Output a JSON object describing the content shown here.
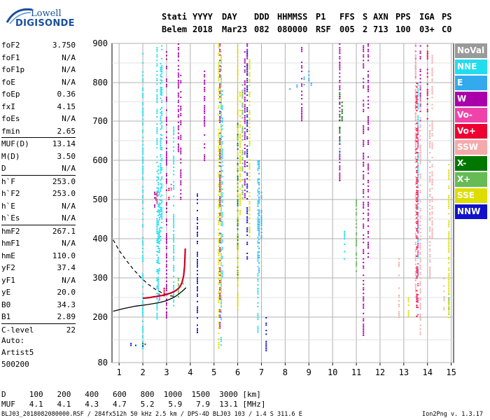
{
  "logo": {
    "brand_top": "Lowell",
    "brand_bottom": "DIGISONDE"
  },
  "header": {
    "row1": [
      "Stati",
      "YYYY",
      "DAY",
      "DDD",
      "HHMMSS",
      "P1",
      "FFS",
      "S",
      "AXN",
      "PPS",
      "IGA",
      "PS"
    ],
    "row2": [
      "Belem",
      "2018",
      "Mar23",
      "082",
      "080000",
      "RSF",
      "005",
      "2",
      "713",
      "100",
      "03+",
      "C0"
    ]
  },
  "parameters": [
    {
      "label": "foF2",
      "value": "3.750"
    },
    {
      "label": "foF1",
      "value": "N/A"
    },
    {
      "label": "foF1p",
      "value": "N/A"
    },
    {
      "label": "foE",
      "value": "N/A"
    },
    {
      "label": "foEp",
      "value": "0.36"
    },
    {
      "label": "fxI",
      "value": "4.15"
    },
    {
      "label": "foEs",
      "value": "N/A"
    },
    {
      "label": "fmin",
      "value": "2.65"
    },
    {
      "label": "MUF(D)",
      "value": "13.14"
    },
    {
      "label": "M(D)",
      "value": "3.50"
    },
    {
      "label": "D",
      "value": "N/A"
    },
    {
      "label": "h`F",
      "value": "253.0"
    },
    {
      "label": "h`F2",
      "value": "253.0"
    },
    {
      "label": "h`E",
      "value": "N/A"
    },
    {
      "label": "h`Es",
      "value": "N/A"
    },
    {
      "label": "hmF2",
      "value": "267.1"
    },
    {
      "label": "hmF1",
      "value": "N/A"
    },
    {
      "label": "hmE",
      "value": "110.0"
    },
    {
      "label": "yF2",
      "value": "37.4"
    },
    {
      "label": "yF1",
      "value": "N/A"
    },
    {
      "label": "yE",
      "value": "20.0"
    },
    {
      "label": "B0",
      "value": "34.3"
    },
    {
      "label": "B1",
      "value": "2.89"
    },
    {
      "label": "C-level",
      "value": "22"
    }
  ],
  "auto": {
    "line1": "Auto:",
    "line2": "Artist5",
    "line3": "500200"
  },
  "dmuf_table": {
    "d_label": "D",
    "d_values": [
      "100",
      "200",
      "400",
      "600",
      "800",
      "1000",
      "1500",
      "3000"
    ],
    "d_unit": "[km]",
    "muf_label": "MUF",
    "muf_values": [
      "4.1",
      "4.1",
      "4.3",
      "4.7",
      "5.2",
      "5.9",
      "7.9",
      "13.1"
    ],
    "muf_unit": "[MHz]"
  },
  "footer": {
    "left": "BLJ03_2018082080000.RSF / 284fx512h 50 kHz 2.5 km / DPS-4D BLJ03 103 / 1.4 S 311.6 E",
    "right": "Ion2Png v. 1.3.17"
  },
  "legend": [
    {
      "label": "NoVal",
      "color": "#9a9a9a"
    },
    {
      "label": "NNE",
      "color": "#22ddee"
    },
    {
      "label": "E",
      "color": "#33aaee"
    },
    {
      "label": "W",
      "color": "#aa00aa"
    },
    {
      "label": "Vo-",
      "color": "#ee44aa"
    },
    {
      "label": "Vo+",
      "color": "#ee0033"
    },
    {
      "label": "SSW",
      "color": "#f4aaaa"
    },
    {
      "label": "X-",
      "color": "#007700"
    },
    {
      "label": "X+",
      "color": "#66bb55"
    },
    {
      "label": "SSE",
      "color": "#dddd00"
    },
    {
      "label": "NNW",
      "color": "#1111cc"
    }
  ],
  "chart_data": {
    "type": "scatter",
    "x_ticks": [
      "1",
      "2",
      "3",
      "4",
      "5",
      "6",
      "7",
      "8",
      "9",
      "10",
      "11",
      "12",
      "13",
      "14",
      "15"
    ],
    "y_ticks": [
      "80",
      "200",
      "300",
      "400",
      "500",
      "600",
      "700",
      "800",
      "900"
    ],
    "xlim": [
      0.7,
      15.1
    ],
    "ylim": [
      80,
      900
    ],
    "y_scale": "nonlinear",
    "grid": true,
    "legend_position": "right",
    "profile_solid": [
      [
        0.75,
        215
      ],
      [
        1.2,
        222
      ],
      [
        1.7,
        228
      ],
      [
        2.2,
        232
      ],
      [
        2.7,
        237
      ],
      [
        3.0,
        242
      ],
      [
        3.3,
        250
      ],
      [
        3.5,
        258
      ],
      [
        3.7,
        268
      ],
      [
        3.82,
        275
      ]
    ],
    "profile_dashed": [
      [
        0.75,
        397
      ],
      [
        1.0,
        370
      ],
      [
        1.3,
        345
      ],
      [
        1.6,
        322
      ],
      [
        1.9,
        302
      ],
      [
        2.2,
        285
      ],
      [
        2.5,
        272
      ],
      [
        2.8,
        262
      ],
      [
        3.1,
        255
      ],
      [
        3.4,
        252
      ]
    ],
    "trace_F2": [
      [
        2.0,
        248
      ],
      [
        2.3,
        250
      ],
      [
        2.6,
        253
      ],
      [
        2.9,
        256
      ],
      [
        3.2,
        262
      ],
      [
        3.4,
        268
      ],
      [
        3.55,
        276
      ],
      [
        3.65,
        288
      ],
      [
        3.72,
        305
      ],
      [
        3.76,
        330
      ],
      [
        3.78,
        360
      ],
      [
        3.79,
        375
      ]
    ],
    "scatter_groups": [
      {
        "cat": "NNE",
        "x": [
          2.0,
          2.6,
          2.65,
          2.7,
          2.75,
          2.8,
          3.3,
          5.3,
          5.35,
          6.85,
          10.5,
          13.6
        ],
        "y_min": [
          110,
          160,
          240,
          320,
          390,
          420,
          230,
          120,
          300,
          150,
          350,
          300
        ],
        "y_max": [
          880,
          900,
          600,
          520,
          850,
          900,
          700,
          880,
          780,
          600,
          420,
          800
        ]
      },
      {
        "cat": "E",
        "x": [
          6.9,
          7.0,
          8.2,
          8.5,
          8.8,
          9.0,
          9.1,
          10.3
        ],
        "y_min": [
          300,
          400,
          785,
          790,
          795,
          800,
          790,
          600
        ],
        "y_max": [
          600,
          520,
          790,
          800,
          815,
          830,
          800,
          650
        ]
      },
      {
        "cat": "W",
        "x": [
          2.5,
          3.0,
          3.5,
          3.6,
          4.6,
          5.25,
          6.3,
          6.4,
          8.7,
          10.3,
          11.3,
          11.5,
          13.7
        ],
        "y_min": [
          480,
          200,
          620,
          500,
          600,
          160,
          500,
          800,
          700,
          550,
          150,
          350,
          700
        ],
        "y_max": [
          520,
          880,
          900,
          820,
          840,
          900,
          880,
          900,
          900,
          900,
          900,
          900,
          900
        ]
      },
      {
        "cat": "Vo-",
        "x": [
          2.6,
          2.7,
          3.2,
          13.5,
          13.6
        ],
        "y_min": [
          480,
          240,
          520,
          600,
          200
        ],
        "y_max": [
          520,
          260,
          540,
          900,
          700
        ]
      },
      {
        "cat": "Vo+",
        "x": [
          2.55,
          2.9,
          3.1,
          13.55,
          14.0
        ],
        "y_min": [
          490,
          250,
          500,
          200,
          700
        ],
        "y_max": [
          515,
          275,
          530,
          800,
          900
        ]
      },
      {
        "cat": "SSW",
        "x": [
          12.8,
          13.5,
          13.7,
          14.1,
          14.2,
          14.7
        ],
        "y_min": [
          200,
          250,
          150,
          300,
          400,
          220
        ],
        "y_max": [
          350,
          900,
          800,
          700,
          880,
          300
        ]
      },
      {
        "cat": "X-",
        "x": [
          2.0,
          2.1,
          6.0,
          10.3,
          10.4
        ],
        "y_min": [
          125,
          125,
          300,
          650,
          700
        ],
        "y_max": [
          132,
          135,
          700,
          780,
          760
        ]
      },
      {
        "cat": "X+",
        "x": [
          3.5,
          3.7,
          6.2,
          11.0,
          14.9
        ],
        "y_min": [
          240,
          270,
          500,
          300,
          200
        ],
        "y_max": [
          300,
          310,
          800,
          500,
          260
        ]
      },
      {
        "cat": "SSE",
        "x": [
          5.2,
          5.3,
          6.0,
          6.1,
          6.5,
          13.2,
          14.9
        ],
        "y_min": [
          120,
          200,
          200,
          450,
          400,
          200,
          200
        ],
        "y_max": [
          900,
          880,
          900,
          800,
          860,
          260,
          600
        ]
      },
      {
        "cat": "NNW",
        "x": [
          1.5,
          1.7,
          2.0,
          7.2,
          4.3,
          6.4
        ],
        "y_min": [
          125,
          125,
          125,
          110,
          160,
          350
        ],
        "y_max": [
          132,
          132,
          135,
          200,
          520,
          900
        ]
      }
    ]
  }
}
